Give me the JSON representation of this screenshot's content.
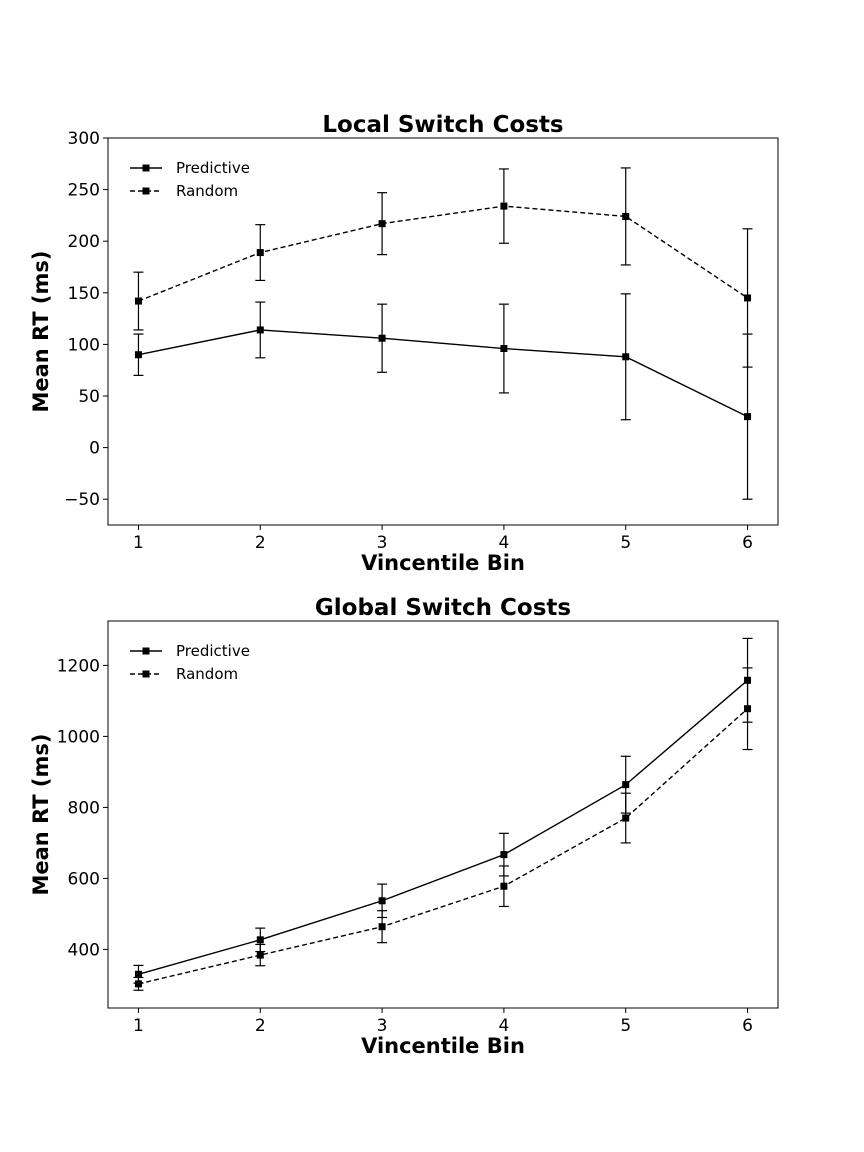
{
  "chart_data": [
    {
      "type": "line",
      "title": "Local Switch Costs",
      "xlabel": "Vincentile Bin",
      "ylabel": "Mean RT (ms)",
      "x": [
        1,
        2,
        3,
        4,
        5,
        6
      ],
      "xlim": [
        0.75,
        6.25
      ],
      "ylim": [
        -75,
        300
      ],
      "yticks": [
        -50,
        0,
        50,
        100,
        150,
        200,
        250,
        300
      ],
      "xticks": [
        1,
        2,
        3,
        4,
        5,
        6
      ],
      "legend_position": "top-left",
      "marker": "square",
      "color": "#000000",
      "series": [
        {
          "name": "Predictive",
          "line_style": "solid",
          "values": [
            90,
            114,
            106,
            96,
            88,
            30
          ],
          "error": [
            20,
            27,
            33,
            43,
            61,
            80
          ]
        },
        {
          "name": "Random",
          "line_style": "dashed",
          "values": [
            142,
            189,
            217,
            234,
            224,
            145
          ],
          "error": [
            28,
            27,
            30,
            36,
            47,
            67
          ]
        }
      ]
    },
    {
      "type": "line",
      "title": "Global Switch Costs",
      "xlabel": "Vincentile Bin",
      "ylabel": "Mean RT (ms)",
      "x": [
        1,
        2,
        3,
        4,
        5,
        6
      ],
      "xlim": [
        0.75,
        6.25
      ],
      "ylim": [
        235,
        1325
      ],
      "yticks": [
        400,
        600,
        800,
        1000,
        1200
      ],
      "xticks": [
        1,
        2,
        3,
        4,
        5,
        6
      ],
      "legend_position": "top-left",
      "marker": "square",
      "color": "#000000",
      "series": [
        {
          "name": "Predictive",
          "line_style": "solid",
          "values": [
            330,
            427,
            537,
            667,
            864,
            1158
          ],
          "error": [
            25,
            33,
            47,
            60,
            80,
            118
          ]
        },
        {
          "name": "Random",
          "line_style": "dashed",
          "values": [
            303,
            384,
            464,
            578,
            770,
            1078
          ],
          "error": [
            18,
            30,
            45,
            57,
            70,
            115
          ]
        }
      ]
    }
  ]
}
